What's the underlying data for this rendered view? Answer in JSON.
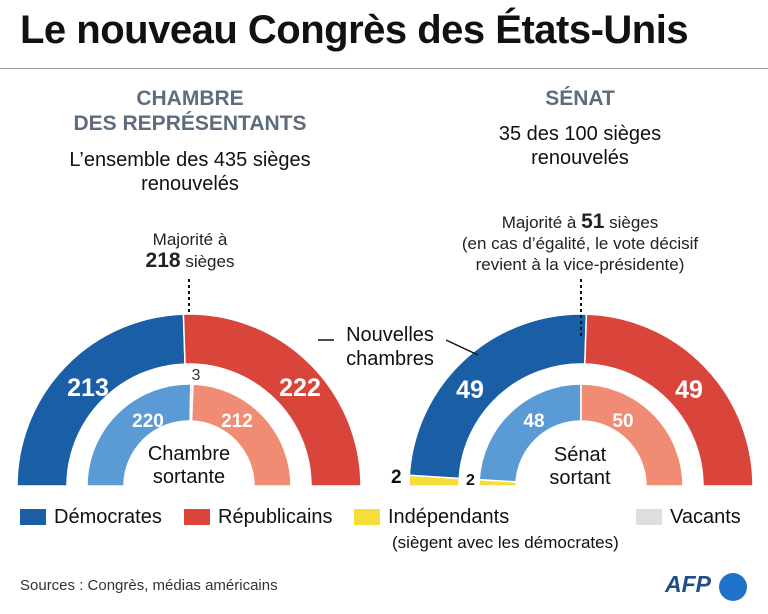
{
  "title": "Le nouveau Congrès des États-Unis",
  "house": {
    "heading_line1": "CHAMBRE",
    "heading_line2": "DES REPRÉSENTANTS",
    "sub_line1": "L’ensemble des 435 sièges",
    "sub_line2": "renouvelés",
    "majority_line1": "Majorité à",
    "majority_number": "218",
    "majority_unit": "sièges",
    "inner_caption_line1": "Chambre",
    "inner_caption_line2": "sortante"
  },
  "senate": {
    "heading": "SÉNAT",
    "sub_line1": "35 des 100 sièges",
    "sub_line2": "renouvelés",
    "majority_prefix": "Majorité à",
    "majority_number": "51",
    "majority_unit": "sièges",
    "majority_line2": "(en cas d’égalité, le vote décisif",
    "majority_line3": "revient à la vice-présidente)",
    "inner_caption_line1": "Sénat",
    "inner_caption_line2": "sortant"
  },
  "callout": {
    "line1": "Nouvelles",
    "line2": "chambres"
  },
  "legend": {
    "democrats": "Démocrates",
    "republicans": "Républicains",
    "independents": "Indépendants",
    "independents_note": "(siègent avec les démocrates)",
    "vacant": "Vacants"
  },
  "colors": {
    "democrats": "#1a5fa6",
    "republicans": "#d9453b",
    "democrats_light": "#5b9bd5",
    "republicans_light": "#f08c73",
    "independents": "#f7dd3a",
    "vacant": "#dedede"
  },
  "source": "Sources : Congrès, médias américains",
  "logo": "AFP",
  "chart_data": [
    {
      "type": "pie",
      "title": "CHAMBRE DES REPRÉSENTANTS",
      "series": [
        {
          "name": "Nouvelles chambres",
          "labels": [
            "Démocrates",
            "Vacants",
            "Républicains"
          ],
          "values": [
            213,
            0,
            222
          ],
          "value_labels": [
            "213",
            "",
            "222"
          ]
        },
        {
          "name": "Chambre sortante",
          "labels": [
            "Démocrates",
            "Vacants",
            "Républicains"
          ],
          "values": [
            220,
            3,
            212
          ],
          "value_labels": [
            "220",
            "3",
            "212"
          ]
        }
      ],
      "total": 435,
      "majority": 218
    },
    {
      "type": "pie",
      "title": "SÉNAT",
      "series": [
        {
          "name": "Nouvelles chambres",
          "labels": [
            "Indépendants",
            "Démocrates",
            "Républicains"
          ],
          "values": [
            2,
            49,
            49
          ],
          "value_labels": [
            "2",
            "49",
            "49"
          ]
        },
        {
          "name": "Sénat sortant",
          "labels": [
            "Indépendants",
            "Démocrates",
            "Républicains"
          ],
          "values": [
            2,
            48,
            50
          ],
          "value_labels": [
            "2",
            "48",
            "50"
          ]
        }
      ],
      "total": 100,
      "majority": 51
    }
  ]
}
